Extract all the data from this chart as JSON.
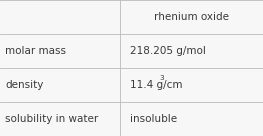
{
  "title": "rhenium oxide",
  "rows": [
    {
      "label": "molar mass",
      "value": "218.205 g/mol",
      "sup": null
    },
    {
      "label": "density",
      "value": "11.4 g/cm",
      "sup": "3"
    },
    {
      "label": "solubility in water",
      "value": "insoluble",
      "sup": null
    }
  ],
  "bg_color": "#f7f7f7",
  "line_color": "#bbbbbb",
  "text_color": "#3a3a3a",
  "font_size": 7.5,
  "col_split": 0.455
}
